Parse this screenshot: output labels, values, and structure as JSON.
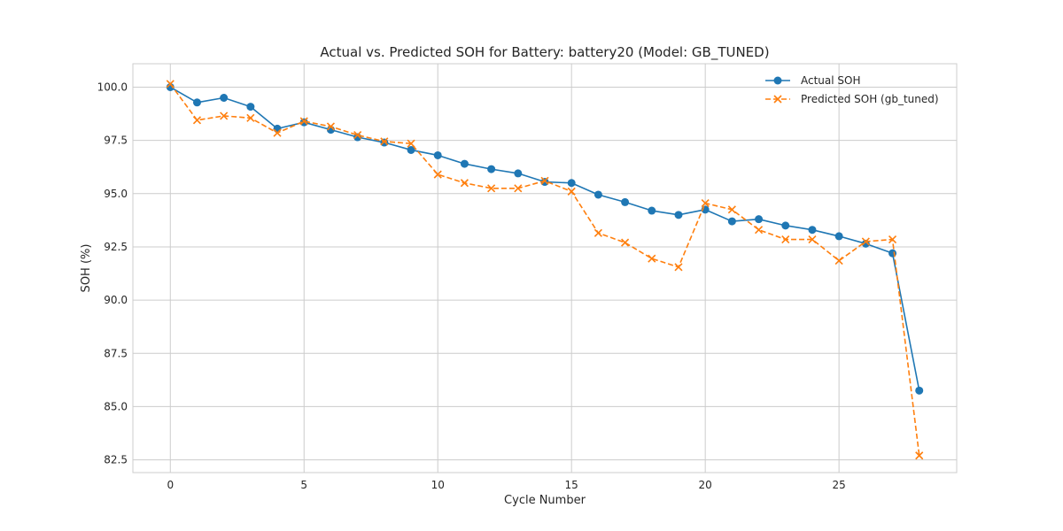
{
  "chart_data": {
    "type": "line",
    "title": "Actual vs. Predicted SOH for Battery: battery20 (Model: GB_TUNED)",
    "xlabel": "Cycle Number",
    "ylabel": "SOH (%)",
    "xlim": [
      -1.4,
      29.4
    ],
    "ylim": [
      81.9,
      101.1
    ],
    "xticks": [
      0,
      5,
      10,
      15,
      20,
      25
    ],
    "yticks": [
      82.5,
      85.0,
      87.5,
      90.0,
      92.5,
      95.0,
      97.5,
      100.0
    ],
    "xtick_labels": [
      "0",
      "5",
      "10",
      "15",
      "20",
      "25"
    ],
    "ytick_labels": [
      "82.5",
      "85.0",
      "87.5",
      "90.0",
      "92.5",
      "95.0",
      "97.5",
      "100.0"
    ],
    "grid": true,
    "legend_position": "top-right",
    "series": [
      {
        "name": "Actual SOH",
        "color": "#1f77b4",
        "line_style": "solid",
        "marker": "circle",
        "x": [
          0,
          1,
          2,
          3,
          4,
          5,
          6,
          7,
          8,
          9,
          10,
          11,
          12,
          13,
          14,
          15,
          16,
          17,
          18,
          19,
          20,
          21,
          22,
          23,
          24,
          25,
          26,
          27,
          28
        ],
        "values": [
          100.0,
          99.28,
          99.5,
          99.08,
          98.05,
          98.35,
          98.0,
          97.65,
          97.4,
          97.05,
          96.8,
          96.4,
          96.15,
          95.95,
          95.55,
          95.5,
          94.95,
          94.6,
          94.2,
          94.0,
          94.25,
          93.7,
          93.8,
          93.5,
          93.3,
          93.0,
          92.65,
          92.2,
          85.75
        ]
      },
      {
        "name": "Predicted SOH (gb_tuned)",
        "color": "#ff7f0e",
        "line_style": "dashed",
        "marker": "x",
        "x": [
          0,
          1,
          2,
          3,
          4,
          5,
          6,
          7,
          8,
          9,
          10,
          11,
          12,
          13,
          14,
          15,
          16,
          17,
          18,
          19,
          20,
          21,
          22,
          23,
          24,
          25,
          26,
          27,
          28
        ],
        "values": [
          100.15,
          98.45,
          98.65,
          98.55,
          97.85,
          98.4,
          98.15,
          97.75,
          97.45,
          97.35,
          95.9,
          95.5,
          95.25,
          95.25,
          95.6,
          95.1,
          93.15,
          92.7,
          91.95,
          91.55,
          94.55,
          94.25,
          93.3,
          92.85,
          92.85,
          91.85,
          92.75,
          92.85,
          82.7
        ]
      }
    ]
  }
}
